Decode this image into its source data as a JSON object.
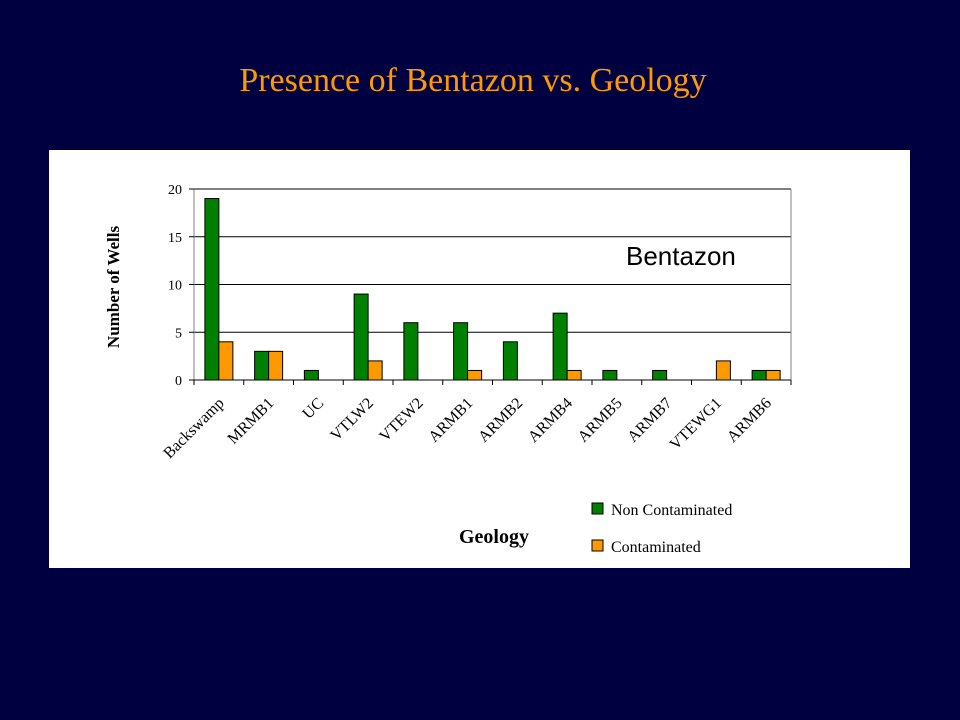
{
  "slide": {
    "title": "Presence of Bentazon vs. Geology"
  },
  "colors": {
    "background": "#000040",
    "title": "#ff9900",
    "non_contaminated": "#008000",
    "contaminated": "#ff9900"
  },
  "chart_data": {
    "type": "bar",
    "title": "",
    "annotation": "Bentazon",
    "xlabel": "Geology",
    "ylabel": "Number of Wells",
    "ylim": [
      0,
      20
    ],
    "yticks": [
      0,
      5,
      10,
      15,
      20
    ],
    "grid": true,
    "legend_position": "bottom-right",
    "categories": [
      "Backswamp",
      "MRMB1",
      "UC",
      "VTLW2",
      "VTEW2",
      "ARMB1",
      "ARMB2",
      "ARMB4",
      "ARMB5",
      "ARMB7",
      "VTEWG1",
      "ARMB6"
    ],
    "series": [
      {
        "name": "Non Contaminated",
        "color": "#008000",
        "values": [
          19,
          3,
          1,
          9,
          6,
          6,
          4,
          7,
          1,
          1,
          0,
          1
        ]
      },
      {
        "name": "Contaminated",
        "color": "#ff9900",
        "values": [
          4,
          3,
          0,
          2,
          0,
          1,
          0,
          1,
          0,
          0,
          2,
          1
        ]
      }
    ]
  }
}
